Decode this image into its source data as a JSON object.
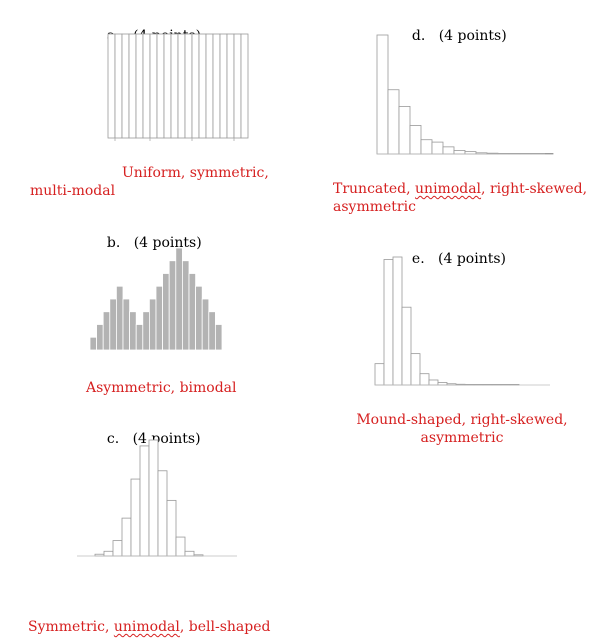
{
  "questions": {
    "a": {
      "letter": "a.",
      "points": "(4 points)",
      "answer_line1": "Uniform, symmetric,",
      "answer_line2": "multi-modal"
    },
    "b": {
      "letter": "b.",
      "points": "(4 points)",
      "answer": "Asymmetric, bimodal"
    },
    "c": {
      "letter": "c.",
      "points": "(4 points)",
      "answer_part1": "Symmetric, ",
      "answer_flagged": "unimodal",
      "answer_part2": ", bell-shaped"
    },
    "d": {
      "letter": "d.",
      "points": "(4 points)",
      "answer_part1": "Truncated, ",
      "answer_flagged": "unimodal",
      "answer_part2": ", right-skewed,",
      "answer_line2": "asymmetric"
    },
    "e": {
      "letter": "e.",
      "points": "(4 points)",
      "answer_line1": "Mound-shaped, right-skewed,",
      "answer_line2": "asymmetric"
    }
  },
  "colors": {
    "answer": "#d62020",
    "bar_fill_b": "#b3b3b3",
    "bar_outline": "#999999"
  },
  "chart_data": [
    {
      "id": "a",
      "type": "bar",
      "shape": "uniform",
      "fill": "none",
      "values": [
        10,
        10,
        10,
        10,
        10,
        10,
        10,
        10,
        10,
        10,
        10,
        10,
        10,
        10,
        10,
        10,
        10,
        10,
        10,
        10
      ]
    },
    {
      "id": "b",
      "type": "bar",
      "shape": "bimodal",
      "fill": "gray",
      "values": [
        1,
        2,
        3,
        4,
        5,
        4,
        3,
        2,
        3,
        4,
        5,
        6,
        7,
        8,
        7,
        6,
        5,
        4,
        3,
        2
      ]
    },
    {
      "id": "c",
      "type": "bar",
      "shape": "bell",
      "fill": "none",
      "values": [
        0.15,
        0.4,
        1.3,
        3.2,
        6.5,
        9.3,
        9.8,
        7.2,
        4.7,
        1.6,
        0.4,
        0.1
      ]
    },
    {
      "id": "d",
      "type": "bar",
      "shape": "right-skewed truncated",
      "fill": "none",
      "values": [
        100,
        54,
        40,
        24,
        12,
        10,
        6,
        3,
        2,
        1,
        0.7,
        0.5,
        0.3,
        0.2,
        0.1,
        0.1
      ]
    },
    {
      "id": "e",
      "type": "bar",
      "shape": "right-skewed mound",
      "fill": "none",
      "values": [
        17,
        100,
        102,
        62,
        25,
        9,
        4,
        2,
        1,
        0.6,
        0.4,
        0.3,
        0.2,
        0.1,
        0.1,
        0.05
      ]
    }
  ]
}
